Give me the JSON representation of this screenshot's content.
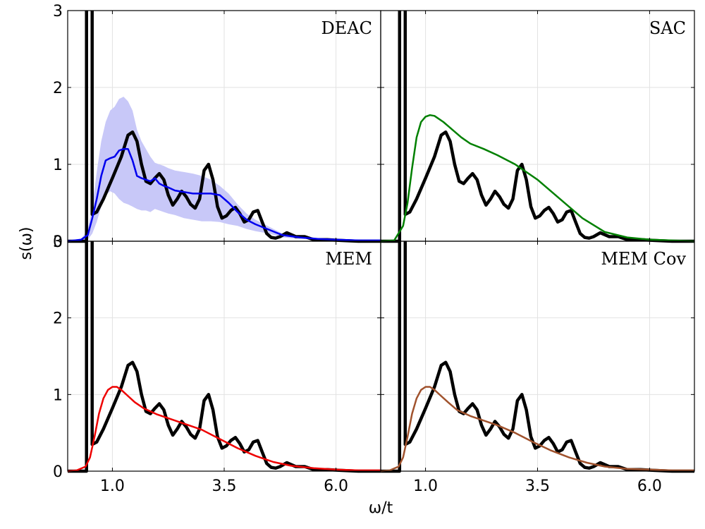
{
  "chart_data": {
    "type": "line",
    "xlabel": "ω/t",
    "ylabel": "s(ω)",
    "xlim": [
      0,
      7
    ],
    "ylim": [
      0,
      3
    ],
    "xticks": [
      "1.0",
      "3.5",
      "6.0"
    ],
    "yticks": [
      "0",
      "1",
      "2",
      "3"
    ],
    "grid": true,
    "layout": "2x2 shared axes",
    "reference": {
      "color": "#000000",
      "spike_x": 0.5,
      "x": [
        0.5,
        0.55,
        0.65,
        0.8,
        1.0,
        1.2,
        1.35,
        1.45,
        1.55,
        1.65,
        1.75,
        1.85,
        1.95,
        2.05,
        2.15,
        2.25,
        2.35,
        2.45,
        2.55,
        2.65,
        2.75,
        2.85,
        2.95,
        3.05,
        3.15,
        3.25,
        3.35,
        3.45,
        3.55,
        3.65,
        3.75,
        3.85,
        3.95,
        4.05,
        4.15,
        4.25,
        4.35,
        4.45,
        4.55,
        4.65,
        4.75,
        4.9,
        5.1,
        5.3,
        5.5,
        5.8,
        6.1,
        6.5,
        7.0
      ],
      "y": [
        0.0,
        0.35,
        0.38,
        0.55,
        0.82,
        1.1,
        1.38,
        1.42,
        1.3,
        1.0,
        0.78,
        0.75,
        0.82,
        0.88,
        0.8,
        0.6,
        0.47,
        0.55,
        0.65,
        0.58,
        0.48,
        0.43,
        0.55,
        0.92,
        1.0,
        0.8,
        0.45,
        0.3,
        0.33,
        0.4,
        0.44,
        0.36,
        0.25,
        0.28,
        0.38,
        0.4,
        0.25,
        0.1,
        0.05,
        0.04,
        0.06,
        0.11,
        0.06,
        0.06,
        0.02,
        0.02,
        0.01,
        0.0,
        0.0
      ]
    },
    "panels": [
      {
        "title": "DEAC",
        "color": "#0000ee",
        "band_color": "#c8c8f8",
        "x": [
          0.0,
          0.3,
          0.45,
          0.55,
          0.65,
          0.75,
          0.85,
          0.95,
          1.05,
          1.15,
          1.25,
          1.35,
          1.45,
          1.55,
          1.65,
          1.75,
          1.85,
          1.95,
          2.05,
          2.15,
          2.25,
          2.4,
          2.6,
          2.8,
          3.0,
          3.2,
          3.4,
          3.6,
          3.8,
          4.0,
          4.2,
          4.5,
          4.8,
          5.2,
          5.6,
          6.0,
          6.5,
          7.0
        ],
        "y": [
          0.0,
          0.02,
          0.08,
          0.3,
          0.55,
          0.85,
          1.05,
          1.08,
          1.1,
          1.18,
          1.2,
          1.2,
          1.05,
          0.85,
          0.82,
          0.8,
          0.78,
          0.82,
          0.75,
          0.72,
          0.7,
          0.66,
          0.64,
          0.62,
          0.62,
          0.62,
          0.6,
          0.5,
          0.38,
          0.28,
          0.22,
          0.15,
          0.08,
          0.05,
          0.03,
          0.02,
          0.01,
          0.01
        ],
        "upper": [
          0.0,
          0.03,
          0.15,
          0.45,
          0.9,
          1.3,
          1.55,
          1.7,
          1.75,
          1.85,
          1.88,
          1.82,
          1.7,
          1.45,
          1.3,
          1.2,
          1.1,
          1.02,
          1.0,
          0.98,
          0.95,
          0.92,
          0.9,
          0.88,
          0.85,
          0.8,
          0.72,
          0.62,
          0.48,
          0.36,
          0.28,
          0.19,
          0.1,
          0.07,
          0.04,
          0.03,
          0.02,
          0.01
        ],
        "lower": [
          0.0,
          0.01,
          0.02,
          0.1,
          0.25,
          0.45,
          0.6,
          0.65,
          0.62,
          0.55,
          0.5,
          0.48,
          0.45,
          0.42,
          0.4,
          0.4,
          0.38,
          0.42,
          0.4,
          0.38,
          0.36,
          0.34,
          0.3,
          0.28,
          0.26,
          0.26,
          0.25,
          0.22,
          0.2,
          0.16,
          0.13,
          0.1,
          0.05,
          0.03,
          0.02,
          0.01,
          0.0,
          0.0
        ]
      },
      {
        "title": "SAC",
        "color": "#008000",
        "x": [
          0.0,
          0.3,
          0.5,
          0.6,
          0.7,
          0.8,
          0.9,
          1.0,
          1.1,
          1.2,
          1.4,
          1.6,
          1.8,
          2.0,
          2.3,
          2.6,
          3.0,
          3.5,
          4.0,
          4.5,
          5.0,
          5.5,
          6.0,
          6.5,
          7.0
        ],
        "y": [
          0.0,
          0.01,
          0.2,
          0.5,
          0.95,
          1.35,
          1.55,
          1.62,
          1.64,
          1.63,
          1.55,
          1.45,
          1.35,
          1.27,
          1.2,
          1.12,
          1.0,
          0.8,
          0.55,
          0.3,
          0.12,
          0.05,
          0.02,
          0.01,
          0.0
        ]
      },
      {
        "title": "MEM",
        "color": "#ee0000",
        "x": [
          0.0,
          0.2,
          0.4,
          0.5,
          0.6,
          0.7,
          0.8,
          0.9,
          1.0,
          1.1,
          1.2,
          1.35,
          1.5,
          1.7,
          2.0,
          2.3,
          2.6,
          3.0,
          3.4,
          3.8,
          4.2,
          4.6,
          5.0,
          5.5,
          6.0,
          6.5,
          7.0
        ],
        "y": [
          0.0,
          0.01,
          0.06,
          0.18,
          0.45,
          0.75,
          0.95,
          1.06,
          1.1,
          1.1,
          1.06,
          0.98,
          0.9,
          0.82,
          0.74,
          0.68,
          0.62,
          0.54,
          0.42,
          0.3,
          0.2,
          0.12,
          0.07,
          0.04,
          0.02,
          0.01,
          0.01
        ]
      },
      {
        "title": "MEM Cov",
        "color": "#a0522d",
        "x": [
          0.0,
          0.2,
          0.4,
          0.5,
          0.6,
          0.7,
          0.8,
          0.9,
          1.0,
          1.1,
          1.2,
          1.35,
          1.5,
          1.7,
          2.0,
          2.3,
          2.6,
          3.0,
          3.4,
          3.8,
          4.2,
          4.6,
          5.0,
          5.5,
          6.0,
          6.5,
          7.0
        ],
        "y": [
          0.0,
          0.01,
          0.06,
          0.18,
          0.45,
          0.75,
          0.95,
          1.06,
          1.1,
          1.1,
          1.06,
          0.98,
          0.9,
          0.8,
          0.72,
          0.66,
          0.6,
          0.5,
          0.38,
          0.27,
          0.18,
          0.11,
          0.06,
          0.03,
          0.02,
          0.01,
          0.01
        ]
      }
    ]
  }
}
